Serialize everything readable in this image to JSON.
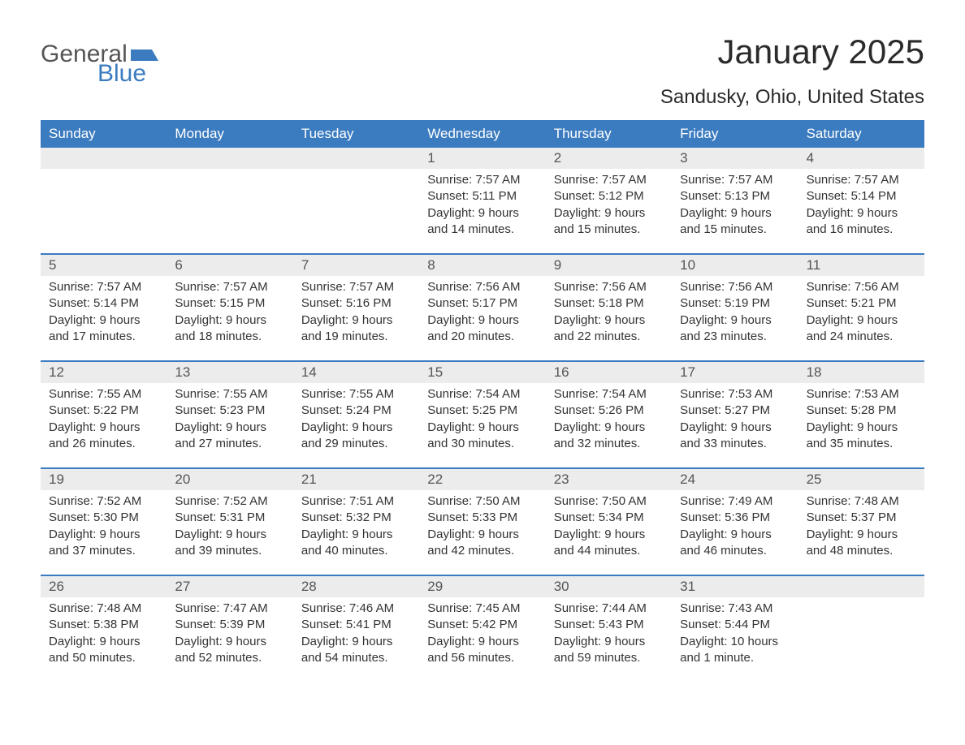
{
  "logo": {
    "text1": "General",
    "text2": "Blue",
    "flag_color": "#3b7bbf"
  },
  "title": "January 2025",
  "location": "Sandusky, Ohio, United States",
  "colors": {
    "header_bg": "#3b7bbf",
    "header_text": "#ffffff",
    "daynum_bg": "#ececec",
    "week_border": "#3b7bbf",
    "body_text": "#333333",
    "background": "#ffffff"
  },
  "day_headers": [
    "Sunday",
    "Monday",
    "Tuesday",
    "Wednesday",
    "Thursday",
    "Friday",
    "Saturday"
  ],
  "weeks": [
    [
      {
        "n": "",
        "sunrise": "",
        "sunset": "",
        "daylight": ""
      },
      {
        "n": "",
        "sunrise": "",
        "sunset": "",
        "daylight": ""
      },
      {
        "n": "",
        "sunrise": "",
        "sunset": "",
        "daylight": ""
      },
      {
        "n": "1",
        "sunrise": "Sunrise: 7:57 AM",
        "sunset": "Sunset: 5:11 PM",
        "daylight": "Daylight: 9 hours and 14 minutes."
      },
      {
        "n": "2",
        "sunrise": "Sunrise: 7:57 AM",
        "sunset": "Sunset: 5:12 PM",
        "daylight": "Daylight: 9 hours and 15 minutes."
      },
      {
        "n": "3",
        "sunrise": "Sunrise: 7:57 AM",
        "sunset": "Sunset: 5:13 PM",
        "daylight": "Daylight: 9 hours and 15 minutes."
      },
      {
        "n": "4",
        "sunrise": "Sunrise: 7:57 AM",
        "sunset": "Sunset: 5:14 PM",
        "daylight": "Daylight: 9 hours and 16 minutes."
      }
    ],
    [
      {
        "n": "5",
        "sunrise": "Sunrise: 7:57 AM",
        "sunset": "Sunset: 5:14 PM",
        "daylight": "Daylight: 9 hours and 17 minutes."
      },
      {
        "n": "6",
        "sunrise": "Sunrise: 7:57 AM",
        "sunset": "Sunset: 5:15 PM",
        "daylight": "Daylight: 9 hours and 18 minutes."
      },
      {
        "n": "7",
        "sunrise": "Sunrise: 7:57 AM",
        "sunset": "Sunset: 5:16 PM",
        "daylight": "Daylight: 9 hours and 19 minutes."
      },
      {
        "n": "8",
        "sunrise": "Sunrise: 7:56 AM",
        "sunset": "Sunset: 5:17 PM",
        "daylight": "Daylight: 9 hours and 20 minutes."
      },
      {
        "n": "9",
        "sunrise": "Sunrise: 7:56 AM",
        "sunset": "Sunset: 5:18 PM",
        "daylight": "Daylight: 9 hours and 22 minutes."
      },
      {
        "n": "10",
        "sunrise": "Sunrise: 7:56 AM",
        "sunset": "Sunset: 5:19 PM",
        "daylight": "Daylight: 9 hours and 23 minutes."
      },
      {
        "n": "11",
        "sunrise": "Sunrise: 7:56 AM",
        "sunset": "Sunset: 5:21 PM",
        "daylight": "Daylight: 9 hours and 24 minutes."
      }
    ],
    [
      {
        "n": "12",
        "sunrise": "Sunrise: 7:55 AM",
        "sunset": "Sunset: 5:22 PM",
        "daylight": "Daylight: 9 hours and 26 minutes."
      },
      {
        "n": "13",
        "sunrise": "Sunrise: 7:55 AM",
        "sunset": "Sunset: 5:23 PM",
        "daylight": "Daylight: 9 hours and 27 minutes."
      },
      {
        "n": "14",
        "sunrise": "Sunrise: 7:55 AM",
        "sunset": "Sunset: 5:24 PM",
        "daylight": "Daylight: 9 hours and 29 minutes."
      },
      {
        "n": "15",
        "sunrise": "Sunrise: 7:54 AM",
        "sunset": "Sunset: 5:25 PM",
        "daylight": "Daylight: 9 hours and 30 minutes."
      },
      {
        "n": "16",
        "sunrise": "Sunrise: 7:54 AM",
        "sunset": "Sunset: 5:26 PM",
        "daylight": "Daylight: 9 hours and 32 minutes."
      },
      {
        "n": "17",
        "sunrise": "Sunrise: 7:53 AM",
        "sunset": "Sunset: 5:27 PM",
        "daylight": "Daylight: 9 hours and 33 minutes."
      },
      {
        "n": "18",
        "sunrise": "Sunrise: 7:53 AM",
        "sunset": "Sunset: 5:28 PM",
        "daylight": "Daylight: 9 hours and 35 minutes."
      }
    ],
    [
      {
        "n": "19",
        "sunrise": "Sunrise: 7:52 AM",
        "sunset": "Sunset: 5:30 PM",
        "daylight": "Daylight: 9 hours and 37 minutes."
      },
      {
        "n": "20",
        "sunrise": "Sunrise: 7:52 AM",
        "sunset": "Sunset: 5:31 PM",
        "daylight": "Daylight: 9 hours and 39 minutes."
      },
      {
        "n": "21",
        "sunrise": "Sunrise: 7:51 AM",
        "sunset": "Sunset: 5:32 PM",
        "daylight": "Daylight: 9 hours and 40 minutes."
      },
      {
        "n": "22",
        "sunrise": "Sunrise: 7:50 AM",
        "sunset": "Sunset: 5:33 PM",
        "daylight": "Daylight: 9 hours and 42 minutes."
      },
      {
        "n": "23",
        "sunrise": "Sunrise: 7:50 AM",
        "sunset": "Sunset: 5:34 PM",
        "daylight": "Daylight: 9 hours and 44 minutes."
      },
      {
        "n": "24",
        "sunrise": "Sunrise: 7:49 AM",
        "sunset": "Sunset: 5:36 PM",
        "daylight": "Daylight: 9 hours and 46 minutes."
      },
      {
        "n": "25",
        "sunrise": "Sunrise: 7:48 AM",
        "sunset": "Sunset: 5:37 PM",
        "daylight": "Daylight: 9 hours and 48 minutes."
      }
    ],
    [
      {
        "n": "26",
        "sunrise": "Sunrise: 7:48 AM",
        "sunset": "Sunset: 5:38 PM",
        "daylight": "Daylight: 9 hours and 50 minutes."
      },
      {
        "n": "27",
        "sunrise": "Sunrise: 7:47 AM",
        "sunset": "Sunset: 5:39 PM",
        "daylight": "Daylight: 9 hours and 52 minutes."
      },
      {
        "n": "28",
        "sunrise": "Sunrise: 7:46 AM",
        "sunset": "Sunset: 5:41 PM",
        "daylight": "Daylight: 9 hours and 54 minutes."
      },
      {
        "n": "29",
        "sunrise": "Sunrise: 7:45 AM",
        "sunset": "Sunset: 5:42 PM",
        "daylight": "Daylight: 9 hours and 56 minutes."
      },
      {
        "n": "30",
        "sunrise": "Sunrise: 7:44 AM",
        "sunset": "Sunset: 5:43 PM",
        "daylight": "Daylight: 9 hours and 59 minutes."
      },
      {
        "n": "31",
        "sunrise": "Sunrise: 7:43 AM",
        "sunset": "Sunset: 5:44 PM",
        "daylight": "Daylight: 10 hours and 1 minute."
      },
      {
        "n": "",
        "sunrise": "",
        "sunset": "",
        "daylight": ""
      }
    ]
  ]
}
